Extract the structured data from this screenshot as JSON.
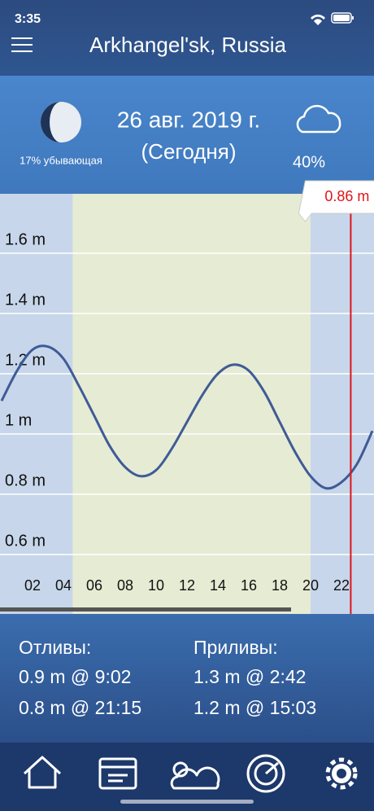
{
  "status_bar": {
    "time": "3:35"
  },
  "header": {
    "title": "Arkhangel'sk, Russia"
  },
  "summary": {
    "moon_phase": "17% убывающая",
    "date": "26 авг. 2019 г.",
    "day_note": "(Сегодня)",
    "cloud_cover": "40%"
  },
  "chart": {
    "type": "line",
    "x": [
      0,
      1,
      2,
      3,
      4,
      5,
      6,
      7,
      8,
      9,
      10,
      11,
      12,
      13,
      14,
      15,
      16,
      17,
      18,
      19,
      20,
      21,
      22,
      23,
      24
    ],
    "values": [
      1.11,
      1.21,
      1.28,
      1.29,
      1.25,
      1.16,
      1.06,
      0.96,
      0.89,
      0.86,
      0.88,
      0.95,
      1.04,
      1.13,
      1.2,
      1.23,
      1.21,
      1.14,
      1.04,
      0.94,
      0.86,
      0.82,
      0.84,
      0.9,
      1.01
    ],
    "color": "#3f5b97",
    "xlim": [
      0,
      24
    ],
    "ylim": [
      0.4,
      1.8
    ],
    "xticks": [
      {
        "value": 2,
        "label": "02"
      },
      {
        "value": 4,
        "label": "04"
      },
      {
        "value": 6,
        "label": "06"
      },
      {
        "value": 8,
        "label": "08"
      },
      10,
      12,
      14,
      16,
      18,
      20,
      22
    ],
    "yticks": [
      {
        "value": 0.6,
        "label": "0.6 m"
      },
      {
        "value": 0.8,
        "label": "0.8 m"
      },
      {
        "value": 1,
        "label": "1 m"
      },
      {
        "value": 1.2,
        "label": "1.2 m"
      },
      {
        "value": 1.4,
        "label": "1.4 m"
      },
      {
        "value": 1.6,
        "label": "1.6 m"
      }
    ],
    "grid": true,
    "daylight": [
      4.6,
      20
    ],
    "current": {
      "x": 22.6,
      "label": "0.86 m"
    }
  },
  "tides": {
    "lows_title": "Отливы:",
    "lows": [
      "0.9 m @ 9:02",
      "0.8 m @ 21:15"
    ],
    "highs_title": "Приливы:",
    "highs": [
      "1.3 m @ 2:42",
      "1.2 m @ 15:03"
    ]
  }
}
